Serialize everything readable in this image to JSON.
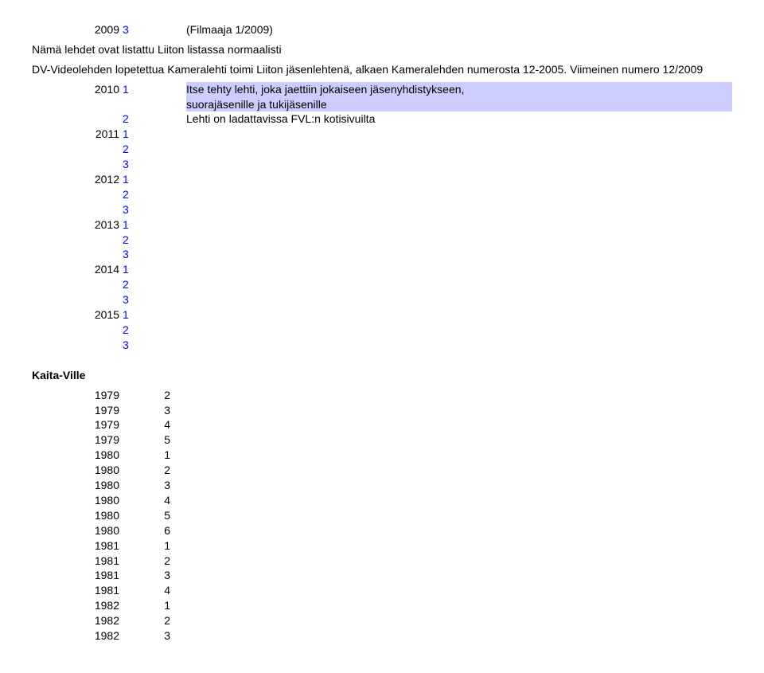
{
  "header_row": {
    "year": "2009",
    "num": "3",
    "note": "(Filmaaja 1/2009)"
  },
  "para_line1": "Nämä lehdet ovat listattu Liiton listassa normaalisti",
  "para_line2": "DV-Videolehden lopetettua Kameralehti toimi Liiton jäsenlehtenä, alkaen Kameralehden numerosta 12-2005. Viimeinen numero 12/2009",
  "block1": [
    {
      "year": "2010",
      "num": "1",
      "note": "Itse tehty lehti, joka jaettiin jokaiseen jäsenyhdistykseen, suorajäsenille ja tukijäsenille",
      "hl": true
    },
    {
      "year": "",
      "num": "2",
      "note": "Lehti on ladattavissa FVL:n kotisivuilta"
    },
    {
      "year": "2011",
      "num": "1",
      "note": ""
    },
    {
      "year": "",
      "num": "2",
      "note": ""
    },
    {
      "year": "",
      "num": "3",
      "note": ""
    },
    {
      "year": "2012",
      "num": "1",
      "note": ""
    },
    {
      "year": "",
      "num": "2",
      "note": ""
    },
    {
      "year": "",
      "num": "3",
      "note": ""
    },
    {
      "year": "2013",
      "num": "1",
      "note": ""
    },
    {
      "year": "",
      "num": "2",
      "note": ""
    },
    {
      "year": "",
      "num": "3",
      "note": ""
    },
    {
      "year": "2014",
      "num": "1",
      "note": ""
    },
    {
      "year": "",
      "num": "2",
      "note": ""
    },
    {
      "year": "",
      "num": "3",
      "note": ""
    },
    {
      "year": "2015",
      "num": "1",
      "note": ""
    },
    {
      "year": "",
      "num": "2",
      "note": ""
    },
    {
      "year": "",
      "num": "3",
      "note": ""
    }
  ],
  "section_title": "Kaita-Ville",
  "block2": [
    {
      "year": "1979",
      "num": "2"
    },
    {
      "year": "1979",
      "num": "3"
    },
    {
      "year": "1979",
      "num": "4"
    },
    {
      "year": "1979",
      "num": "5"
    },
    {
      "year": "1980",
      "num": "1"
    },
    {
      "year": "1980",
      "num": "2"
    },
    {
      "year": "1980",
      "num": "3"
    },
    {
      "year": "1980",
      "num": "4"
    },
    {
      "year": "1980",
      "num": "5"
    },
    {
      "year": "1980",
      "num": "6"
    },
    {
      "year": "1981",
      "num": "1"
    },
    {
      "year": "1981",
      "num": "2"
    },
    {
      "year": "1981",
      "num": "3"
    },
    {
      "year": "1981",
      "num": "4"
    },
    {
      "year": "1982",
      "num": "1"
    },
    {
      "year": "1982",
      "num": "2"
    },
    {
      "year": "1982",
      "num": "3"
    }
  ]
}
